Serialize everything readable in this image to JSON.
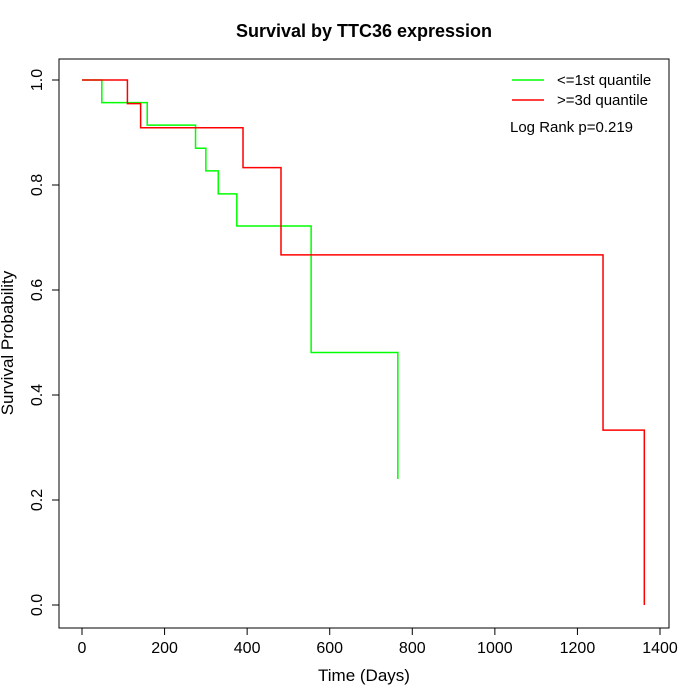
{
  "chart_data": {
    "type": "line",
    "title": "Survival by TTC36 expression",
    "xlabel": "Time (Days)",
    "ylabel": "Survival Probability",
    "xlim": [
      0,
      1400
    ],
    "ylim": [
      0,
      1
    ],
    "xticks": [
      0,
      200,
      400,
      600,
      800,
      1000,
      1200,
      1400
    ],
    "yticks": [
      0.0,
      0.2,
      0.4,
      0.6,
      0.8,
      1.0
    ],
    "ytick_labels": [
      "0.0",
      "0.2",
      "0.4",
      "0.6",
      "0.8",
      "1.0"
    ],
    "grid": false,
    "legend_position": "top-right",
    "annotation": "Log Rank p=0.219",
    "series": [
      {
        "name": "<=1st quantile",
        "color": "#00ff00",
        "x": [
          0,
          48,
          158,
          275,
          300,
          330,
          375,
          555,
          765
        ],
        "y": [
          1.0,
          0.957,
          0.914,
          0.87,
          0.827,
          0.783,
          0.722,
          0.481,
          0.24
        ]
      },
      {
        "name": ">=3d quantile",
        "color": "#ff0000",
        "x": [
          0,
          110,
          142,
          390,
          482,
          1262,
          1362
        ],
        "y": [
          1.0,
          0.955,
          0.909,
          0.833,
          0.667,
          0.333,
          0.0
        ]
      }
    ]
  }
}
